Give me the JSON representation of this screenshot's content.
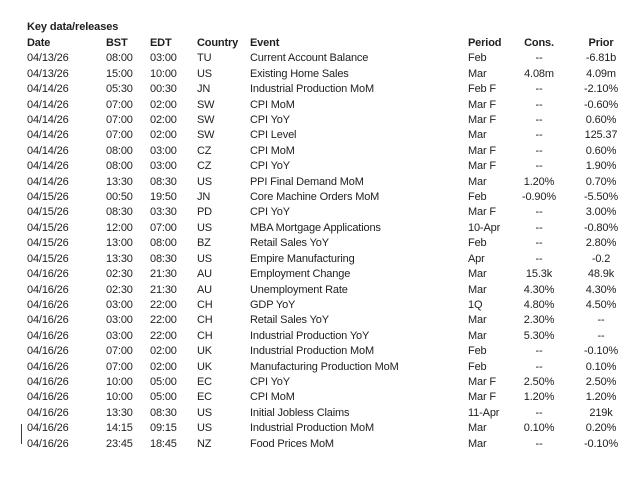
{
  "title": "Key data/releases",
  "colors": {
    "text": "#1e1e1e",
    "background": "#ffffff"
  },
  "table": {
    "columns": [
      {
        "key": "date",
        "label": "Date"
      },
      {
        "key": "bst",
        "label": "BST"
      },
      {
        "key": "edt",
        "label": "EDT"
      },
      {
        "key": "country",
        "label": "Country"
      },
      {
        "key": "event",
        "label": "Event"
      },
      {
        "key": "period",
        "label": "Period"
      },
      {
        "key": "cons",
        "label": "Cons."
      },
      {
        "key": "prior",
        "label": "Prior"
      }
    ],
    "rows": [
      {
        "date": "04/13/26",
        "bst": "08:00",
        "edt": "03:00",
        "country": "TU",
        "event": "Current Account Balance",
        "period": "Feb",
        "cons": "--",
        "prior": "-6.81b"
      },
      {
        "date": "04/13/26",
        "bst": "15:00",
        "edt": "10:00",
        "country": "US",
        "event": "Existing Home Sales",
        "period": "Mar",
        "cons": "4.08m",
        "prior": "4.09m"
      },
      {
        "date": "04/14/26",
        "bst": "05:30",
        "edt": "00:30",
        "country": "JN",
        "event": "Industrial Production MoM",
        "period": "Feb F",
        "cons": "--",
        "prior": "-2.10%"
      },
      {
        "date": "04/14/26",
        "bst": "07:00",
        "edt": "02:00",
        "country": "SW",
        "event": "CPI MoM",
        "period": "Mar F",
        "cons": "--",
        "prior": "-0.60%"
      },
      {
        "date": "04/14/26",
        "bst": "07:00",
        "edt": "02:00",
        "country": "SW",
        "event": "CPI YoY",
        "period": "Mar F",
        "cons": "--",
        "prior": "0.60%"
      },
      {
        "date": "04/14/26",
        "bst": "07:00",
        "edt": "02:00",
        "country": "SW",
        "event": "CPI Level",
        "period": "Mar",
        "cons": "--",
        "prior": "125.37"
      },
      {
        "date": "04/14/26",
        "bst": "08:00",
        "edt": "03:00",
        "country": "CZ",
        "event": "CPI MoM",
        "period": "Mar F",
        "cons": "--",
        "prior": "0.60%"
      },
      {
        "date": "04/14/26",
        "bst": "08:00",
        "edt": "03:00",
        "country": "CZ",
        "event": "CPI YoY",
        "period": "Mar F",
        "cons": "--",
        "prior": "1.90%"
      },
      {
        "date": "04/14/26",
        "bst": "13:30",
        "edt": "08:30",
        "country": "US",
        "event": "PPI Final Demand MoM",
        "period": "Mar",
        "cons": "1.20%",
        "prior": "0.70%"
      },
      {
        "date": "04/15/26",
        "bst": "00:50",
        "edt": "19:50",
        "country": "JN",
        "event": "Core Machine Orders MoM",
        "period": "Feb",
        "cons": "-0.90%",
        "prior": "-5.50%"
      },
      {
        "date": "04/15/26",
        "bst": "08:30",
        "edt": "03:30",
        "country": "PD",
        "event": "CPI YoY",
        "period": "Mar F",
        "cons": "--",
        "prior": "3.00%"
      },
      {
        "date": "04/15/26",
        "bst": "12:00",
        "edt": "07:00",
        "country": "US",
        "event": "MBA Mortgage Applications",
        "period": "10-Apr",
        "cons": "--",
        "prior": "-0.80%"
      },
      {
        "date": "04/15/26",
        "bst": "13:00",
        "edt": "08:00",
        "country": "BZ",
        "event": "Retail Sales YoY",
        "period": "Feb",
        "cons": "--",
        "prior": "2.80%"
      },
      {
        "date": "04/15/26",
        "bst": "13:30",
        "edt": "08:30",
        "country": "US",
        "event": "Empire Manufacturing",
        "period": "Apr",
        "cons": "--",
        "prior": "-0.2"
      },
      {
        "date": "04/16/26",
        "bst": "02:30",
        "edt": "21:30",
        "country": "AU",
        "event": "Employment Change",
        "period": "Mar",
        "cons": "15.3k",
        "prior": "48.9k"
      },
      {
        "date": "04/16/26",
        "bst": "02:30",
        "edt": "21:30",
        "country": "AU",
        "event": "Unemployment Rate",
        "period": "Mar",
        "cons": "4.30%",
        "prior": "4.30%"
      },
      {
        "date": "04/16/26",
        "bst": "03:00",
        "edt": "22:00",
        "country": "CH",
        "event": "GDP YoY",
        "period": "1Q",
        "cons": "4.80%",
        "prior": "4.50%"
      },
      {
        "date": "04/16/26",
        "bst": "03:00",
        "edt": "22:00",
        "country": "CH",
        "event": "Retail Sales YoY",
        "period": "Mar",
        "cons": "2.30%",
        "prior": "--"
      },
      {
        "date": "04/16/26",
        "bst": "03:00",
        "edt": "22:00",
        "country": "CH",
        "event": "Industrial Production YoY",
        "period": "Mar",
        "cons": "5.30%",
        "prior": "--"
      },
      {
        "date": "04/16/26",
        "bst": "07:00",
        "edt": "02:00",
        "country": "UK",
        "event": "Industrial Production MoM",
        "period": "Feb",
        "cons": "--",
        "prior": "-0.10%"
      },
      {
        "date": "04/16/26",
        "bst": "07:00",
        "edt": "02:00",
        "country": "UK",
        "event": "Manufacturing Production MoM",
        "period": "Feb",
        "cons": "--",
        "prior": "0.10%"
      },
      {
        "date": "04/16/26",
        "bst": "10:00",
        "edt": "05:00",
        "country": "EC",
        "event": "CPI YoY",
        "period": "Mar F",
        "cons": "2.50%",
        "prior": "2.50%"
      },
      {
        "date": "04/16/26",
        "bst": "10:00",
        "edt": "05:00",
        "country": "EC",
        "event": "CPI MoM",
        "period": "Mar F",
        "cons": "1.20%",
        "prior": "1.20%"
      },
      {
        "date": "04/16/26",
        "bst": "13:30",
        "edt": "08:30",
        "country": "US",
        "event": "Initial Jobless Claims",
        "period": "11-Apr",
        "cons": "--",
        "prior": "219k"
      },
      {
        "date": "04/16/26",
        "bst": "14:15",
        "edt": "09:15",
        "country": "US",
        "event": "Industrial Production MoM",
        "period": "Mar",
        "cons": "0.10%",
        "prior": "0.20%"
      },
      {
        "date": "04/16/26",
        "bst": "23:45",
        "edt": "18:45",
        "country": "NZ",
        "event": "Food Prices MoM",
        "period": "Mar",
        "cons": "--",
        "prior": "-0.10%"
      }
    ]
  }
}
